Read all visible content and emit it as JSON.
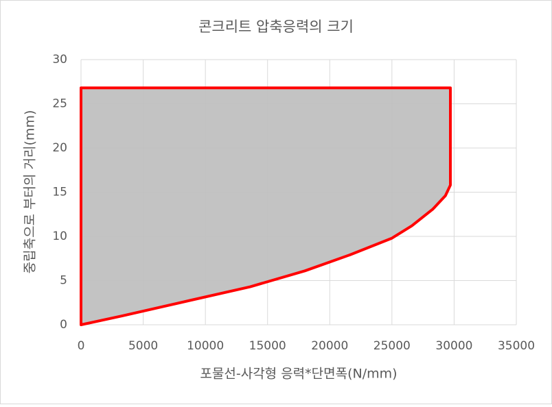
{
  "chart_data": {
    "type": "area",
    "title": "콘크리트 압축응력의 크기",
    "xlabel": "포물선-사각형 응력*단면폭(N/mm)",
    "ylabel": "중립축으로 부터의 거리(mm)",
    "x": [
      0,
      3300,
      8900,
      13600,
      18000,
      21600,
      25000,
      26600,
      28300,
      29300,
      29700,
      29700,
      0,
      0
    ],
    "values": [
      0,
      1.0,
      2.8,
      4.3,
      6.1,
      7.9,
      9.8,
      11.2,
      13.1,
      14.6,
      15.8,
      26.8,
      26.8,
      0
    ],
    "color": "#ff0000",
    "fill": "#c0c0c0",
    "xlim": [
      0,
      35000
    ],
    "ylim": [
      0,
      30
    ],
    "xticks": [
      0,
      5000,
      10000,
      15000,
      20000,
      25000,
      30000,
      35000
    ],
    "yticks": [
      0,
      5,
      10,
      15,
      20,
      25,
      30
    ],
    "grid": true
  }
}
